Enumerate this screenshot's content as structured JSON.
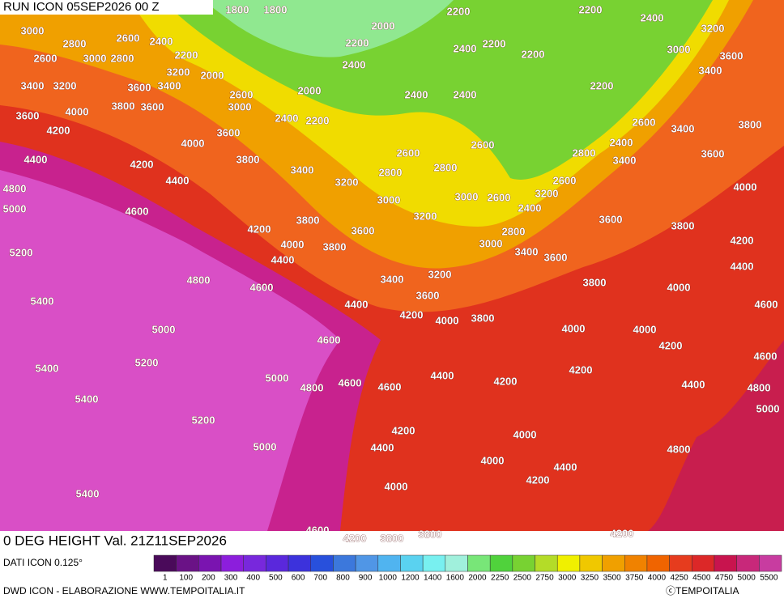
{
  "header": {
    "run": "RUN ICON 05SEP2026 00 Z",
    "title": "0 DEG HEIGHT Val. 21Z11SEP2026"
  },
  "footer": {
    "source": "DATI ICON 0.125°",
    "credits": "DWD ICON - ELABORAZIONE WWW.TEMPOITALIA.IT",
    "copyright": "ⓒTEMPOITALIA"
  },
  "colorbar": {
    "labels": [
      1,
      100,
      200,
      300,
      400,
      500,
      600,
      700,
      800,
      900,
      1000,
      1200,
      1400,
      1600,
      2000,
      2250,
      2500,
      2750,
      3000,
      3250,
      3500,
      3750,
      4000,
      4250,
      4500,
      4750,
      5000,
      5500
    ],
    "colors": [
      "#4a0a5a",
      "#6a1286",
      "#7a14b0",
      "#8c1edc",
      "#7828dc",
      "#5a28dc",
      "#3c32dc",
      "#2850dc",
      "#3c78dc",
      "#5096e6",
      "#50b4f0",
      "#5ad2f0",
      "#78f0f0",
      "#a0f0dc",
      "#78e678",
      "#50d23c",
      "#78d232",
      "#b4dc28",
      "#f0f000",
      "#f0c800",
      "#f0a000",
      "#f08200",
      "#f06400",
      "#e63c1e",
      "#dc2828",
      "#c8144e",
      "#c8287a",
      "#c83ca0"
    ]
  },
  "contour_labels": [
    "1800",
    "1800",
    "2200",
    "2200",
    "2400",
    "3000",
    "2000",
    "3200",
    "2600",
    "2400",
    "2800",
    "2200",
    "2400",
    "2200",
    "3000",
    "2200",
    "2600",
    "3000",
    "2800",
    "2400",
    "2200",
    "3600",
    "3200",
    "2000",
    "3400",
    "3400",
    "3200",
    "3600",
    "3400",
    "2000",
    "2400",
    "2400",
    "2200",
    "3800",
    "3600",
    "2600",
    "3000",
    "3600",
    "4000",
    "2400",
    "2200",
    "2600",
    "3400",
    "3800",
    "4200",
    "3600",
    "4000",
    "2600",
    "2400",
    "2800",
    "3400",
    "3600",
    "4400",
    "4200",
    "3800",
    "2600",
    "3400",
    "2800",
    "2800",
    "2600",
    "4400",
    "3200",
    "4000",
    "4800",
    "3000",
    "3000",
    "2600",
    "3200",
    "2400",
    "5000",
    "4600",
    "3800",
    "3200",
    "3600",
    "3800",
    "4200",
    "3600",
    "2800",
    "4000",
    "3800",
    "3000",
    "3400",
    "4200",
    "5200",
    "4400",
    "3600",
    "4400",
    "4800",
    "3400",
    "3200",
    "3800",
    "4000",
    "4600",
    "3600",
    "5400",
    "4400",
    "4200",
    "4000",
    "3800",
    "4600",
    "5000",
    "4000",
    "4000",
    "4600",
    "4200",
    "4600",
    "5200",
    "5400",
    "5000",
    "4400",
    "4200",
    "4200",
    "4600",
    "4800",
    "4600",
    "4400",
    "4800",
    "5400",
    "5000",
    "5200",
    "4200",
    "4000",
    "4400",
    "5000",
    "4800",
    "4000",
    "4400",
    "4200",
    "5400",
    "4000",
    "4600",
    "4200",
    "3800",
    "3800",
    "4200"
  ]
}
